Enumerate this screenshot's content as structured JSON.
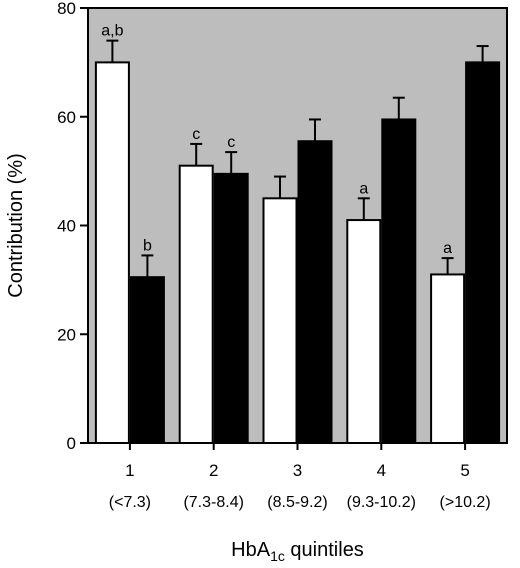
{
  "chart_data": {
    "type": "bar",
    "xlabel_main": "HbA",
    "xlabel_sub": "1c",
    "xlabel_tail": " quintiles",
    "ylabel": "Contribution (%)",
    "ylim": [
      0,
      80
    ],
    "yticks": [
      0,
      20,
      40,
      60,
      80
    ],
    "grid": false,
    "legend": "none",
    "background_color": "#bdbdbd",
    "categories": [
      "1",
      "2",
      "3",
      "4",
      "5"
    ],
    "category_sublabels": [
      "(<7.3)",
      "(7.3-8.4)",
      "(8.5-9.2)",
      "(9.3-10.2)",
      "(>10.2)"
    ],
    "series": [
      {
        "fill": "#ffffff",
        "values": [
          70,
          51,
          45,
          41,
          31
        ],
        "errors": [
          4,
          4,
          4,
          4,
          3
        ],
        "annotations": [
          "a,b",
          "c",
          "",
          "a",
          "a"
        ]
      },
      {
        "fill": "#000000",
        "values": [
          30.5,
          49.5,
          55.5,
          59.5,
          70
        ],
        "errors": [
          4,
          4,
          4,
          4,
          3
        ],
        "annotations": [
          "b",
          "c",
          "",
          "",
          ""
        ]
      }
    ]
  }
}
